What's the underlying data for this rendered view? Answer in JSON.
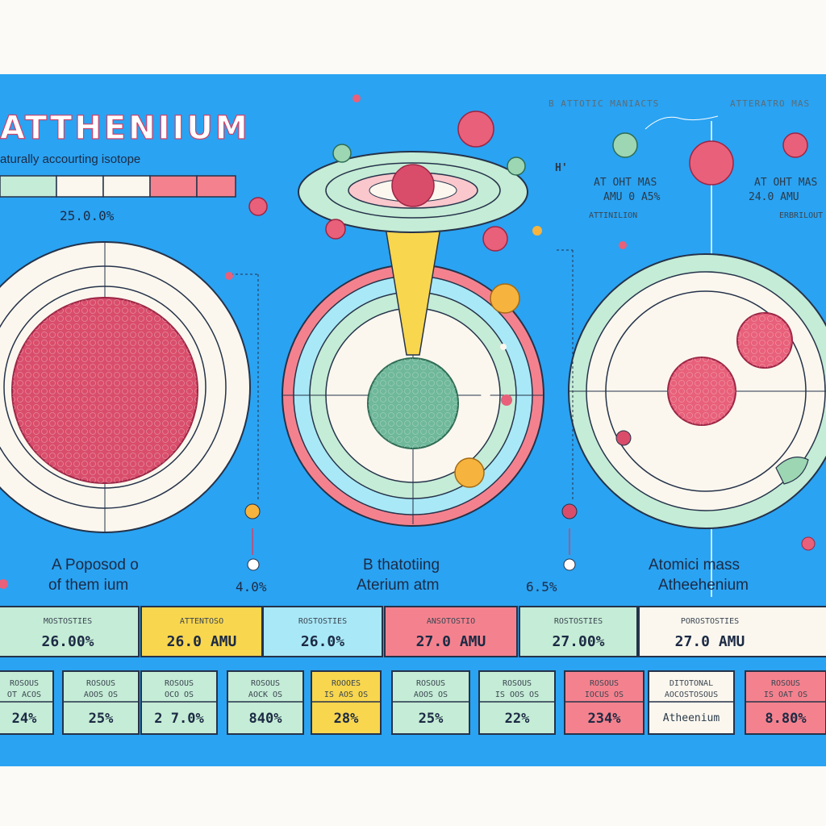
{
  "title": "ATTHENIIUM",
  "subtitle": "aturally accourting isotope",
  "legend_value": "25.0.0%",
  "top_right": {
    "header_1": "B   ATTOTIC MANIACTS",
    "header_2": "ATTERATRO MAS",
    "h_mark": "H'",
    "label_1a": "AT OHT MAS",
    "label_1b": "AMU 0 A5%",
    "label_1c": "ATTINILION",
    "label_2a": "AT OHT MAS",
    "label_2b": "24.0 AMU",
    "label_2c": "ERBRILOUT"
  },
  "panels": [
    {
      "caption_1": "A Poposod  o",
      "caption_2": "of them ium",
      "pct": "4.0%"
    },
    {
      "caption_1": "B thatotiing",
      "caption_2": "Aterium atm",
      "pct": "6.5%"
    },
    {
      "caption_1": "Atomici mass",
      "caption_2": "Atheehenium",
      "pct": ""
    }
  ],
  "row1": [
    {
      "header": "MOSTOSTIES",
      "value": "26.00%",
      "color": "#c5ecd6"
    },
    {
      "header": "ATTENTOSO",
      "value": "26.0 AMU",
      "color": "#f8d64e"
    },
    {
      "header": "ROSTOSTIES",
      "value": "26.0%",
      "color": "#a9e8f7"
    },
    {
      "header": "ANSOTOSTIO",
      "value": "27.0 AMU",
      "color": "#f4828e"
    },
    {
      "header": "ROSTOSTIES",
      "value": "27.00%",
      "color": "#c5ecd6"
    },
    {
      "header": "POROSTOSTIES",
      "value": "27.0 AMU",
      "color": "#fbf7ee"
    }
  ],
  "row2": [
    {
      "top": "ROSOUS",
      "mid": "OT ACOS",
      "value": "24%",
      "color": "#c5ecd6"
    },
    {
      "top": "ROSOUS",
      "mid": "AOOS  OS",
      "value": "25%",
      "color": "#c5ecd6"
    },
    {
      "top": "ROSOUS",
      "mid": "OCO OS",
      "value": "2 7.0%",
      "color": "#c5ecd6"
    },
    {
      "top": "ROSOUS",
      "mid": "AOCK OS",
      "value": "840%",
      "color": "#c5ecd6"
    },
    {
      "top": "ROOOES",
      "mid": "IS AOS OS",
      "value": "28%",
      "color": "#f8d64e"
    },
    {
      "top": "ROSOUS",
      "mid": "AOOS  OS",
      "value": "25%",
      "color": "#c5ecd6"
    },
    {
      "top": "ROSOUS",
      "mid": "IS OOS OS",
      "value": "22%",
      "color": "#c5ecd6"
    },
    {
      "top": "ROSOUS",
      "mid": "IOCUS OS",
      "value": "234%",
      "color": "#f4828e"
    },
    {
      "top": "DITOTONAL",
      "mid": "AOCOSTOSOUS",
      "value": "Atheenium",
      "color": "#fbf7ee"
    },
    {
      "top": "ROSOUS",
      "mid": "IS OAT OS",
      "value": "8.80%",
      "color": "#f4828e"
    }
  ],
  "colors": {
    "background": "#2aa3f2",
    "accent_red": "#d0436a",
    "mint": "#c5ecd6",
    "yellow": "#f8d64e",
    "cream": "#fbf7ee"
  }
}
